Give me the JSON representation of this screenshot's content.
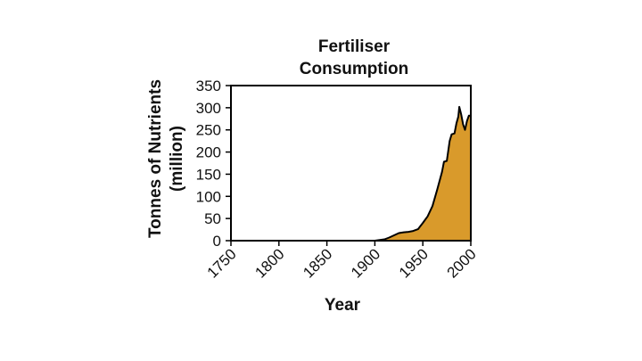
{
  "chart_data": {
    "type": "area",
    "title_lines": [
      "Fertiliser",
      "Consumption"
    ],
    "xlabel": "Year",
    "ylabel_lines": [
      "Tonnes of Nutrients",
      "(million)"
    ],
    "xlim": [
      1750,
      2000
    ],
    "ylim": [
      0,
      350
    ],
    "x_ticks": [
      "1750",
      "1800",
      "1850",
      "1900",
      "1950",
      "2000"
    ],
    "y_ticks": [
      "0",
      "50",
      "100",
      "150",
      "200",
      "250",
      "300",
      "350"
    ],
    "grid": false,
    "fill_color": "#D99A2B",
    "line_color": "#000000",
    "x": [
      1750,
      1900,
      1910,
      1915,
      1920,
      1925,
      1930,
      1935,
      1940,
      1945,
      1950,
      1955,
      1960,
      1965,
      1970,
      1972,
      1975,
      1978,
      1980,
      1983,
      1985,
      1987,
      1988,
      1990,
      1992,
      1994,
      1996,
      1998,
      2000
    ],
    "y": [
      0,
      0,
      3,
      7,
      12,
      17,
      19,
      20,
      22,
      26,
      40,
      55,
      78,
      115,
      155,
      178,
      180,
      225,
      240,
      242,
      265,
      280,
      302,
      285,
      262,
      250,
      270,
      282,
      282
    ]
  }
}
